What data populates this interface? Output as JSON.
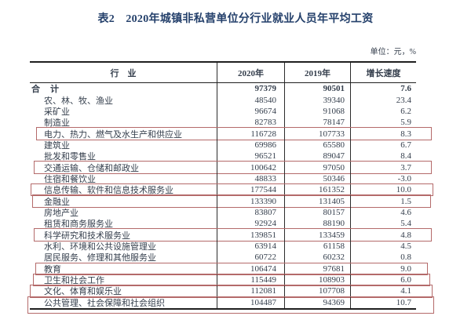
{
  "page": {
    "title": "表2　2020年城镇非私营单位分行业就业人员年平均工资",
    "unit_label": "单位：元，%"
  },
  "table": {
    "columns": [
      "行　业",
      "2020年",
      "2019年",
      "增长速度"
    ],
    "rows": [
      {
        "industry": "合　计",
        "v2020": "97379",
        "v2019": "90501",
        "growth": "7.6",
        "total": true,
        "highlighted": false
      },
      {
        "industry": "农、林、牧、渔业",
        "v2020": "48540",
        "v2019": "39340",
        "growth": "23.4",
        "total": false,
        "highlighted": false
      },
      {
        "industry": "采矿业",
        "v2020": "96674",
        "v2019": "91068",
        "growth": "6.2",
        "total": false,
        "highlighted": false
      },
      {
        "industry": "制造业",
        "v2020": "82783",
        "v2019": "78147",
        "growth": "5.9",
        "total": false,
        "highlighted": false
      },
      {
        "industry": "电力、热力、燃气及水生产和供应业",
        "v2020": "116728",
        "v2019": "107733",
        "growth": "8.3",
        "total": false,
        "highlighted": true
      },
      {
        "industry": "建筑业",
        "v2020": "69986",
        "v2019": "65580",
        "growth": "6.7",
        "total": false,
        "highlighted": false
      },
      {
        "industry": "批发和零售业",
        "v2020": "96521",
        "v2019": "89047",
        "growth": "8.4",
        "total": false,
        "highlighted": false
      },
      {
        "industry": "交通运输、仓储和邮政业",
        "v2020": "100642",
        "v2019": "97050",
        "growth": "3.7",
        "total": false,
        "highlighted": true
      },
      {
        "industry": "住宿和餐饮业",
        "v2020": "48833",
        "v2019": "50346",
        "growth": "-3.0",
        "total": false,
        "highlighted": false
      },
      {
        "industry": "信息传输、软件和信息技术服务业",
        "v2020": "177544",
        "v2019": "161352",
        "growth": "10.0",
        "total": false,
        "highlighted": true
      },
      {
        "industry": "金融业",
        "v2020": "133390",
        "v2019": "131405",
        "growth": "1.5",
        "total": false,
        "highlighted": true
      },
      {
        "industry": "房地产业",
        "v2020": "83807",
        "v2019": "80157",
        "growth": "4.6",
        "total": false,
        "highlighted": false
      },
      {
        "industry": "租赁和商务服务业",
        "v2020": "92924",
        "v2019": "88190",
        "growth": "5.4",
        "total": false,
        "highlighted": false
      },
      {
        "industry": "科学研究和技术服务业",
        "v2020": "139851",
        "v2019": "133459",
        "growth": "4.8",
        "total": false,
        "highlighted": true
      },
      {
        "industry": "水利、环境和公共设施管理业",
        "v2020": "63914",
        "v2019": "61158",
        "growth": "4.5",
        "total": false,
        "highlighted": false
      },
      {
        "industry": "居民服务、修理和其他服务业",
        "v2020": "60722",
        "v2019": "60232",
        "growth": "0.8",
        "total": false,
        "highlighted": false
      },
      {
        "industry": "教育",
        "v2020": "106474",
        "v2019": "97681",
        "growth": "9.0",
        "total": false,
        "highlighted": true
      },
      {
        "industry": "卫生和社会工作",
        "v2020": "115449",
        "v2019": "108903",
        "growth": "6.0",
        "total": false,
        "highlighted": true
      },
      {
        "industry": "文化、体育和娱乐业",
        "v2020": "112081",
        "v2019": "107708",
        "growth": "4.1",
        "total": false,
        "highlighted": true
      },
      {
        "industry": "公共管理、社会保障和社会组织",
        "v2020": "104487",
        "v2019": "94369",
        "growth": "10.7",
        "total": false,
        "highlighted": true
      }
    ]
  },
  "colors": {
    "highlight_box": "#b46a6a",
    "title_text": "#24406b",
    "body_text": "#343e4c",
    "rule": "#1f1f1f"
  }
}
